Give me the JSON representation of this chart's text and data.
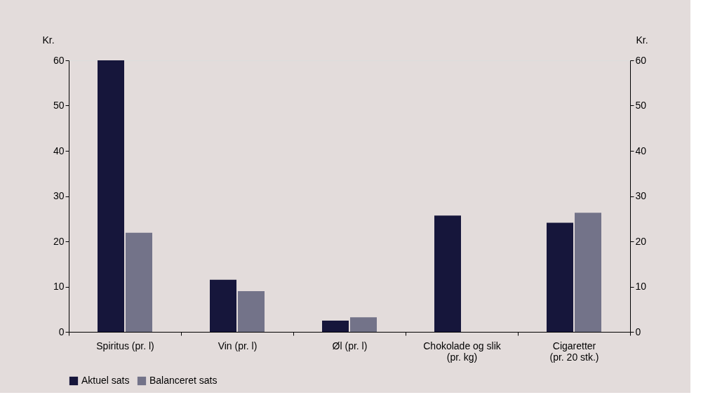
{
  "chart_data": {
    "type": "bar",
    "ylabel": "Kr.",
    "y2label": "Kr.",
    "categories": [
      "Spiritus (pr. l)",
      "Vin (pr. l)",
      "Øl (pr. l)",
      "Chokolade og slik\n(pr. kg)",
      "Cigaretter\n(pr. 20 stk.)"
    ],
    "series": [
      {
        "name": "Aktuel sats",
        "color": "#16163b",
        "values": [
          60,
          11.5,
          2.5,
          25.7,
          24.1
        ]
      },
      {
        "name": "Balanceret sats",
        "color": "#737389",
        "values": [
          21.9,
          9.0,
          3.2,
          null,
          26.3
        ]
      }
    ],
    "ylim": [
      0,
      60
    ],
    "yticks": [
      0,
      10,
      20,
      30,
      40,
      50,
      60
    ],
    "y2lim": [
      0,
      60
    ],
    "y2ticks": [
      0,
      10,
      20,
      30,
      40,
      50,
      60
    ],
    "grid": false,
    "legend": "bottom"
  }
}
